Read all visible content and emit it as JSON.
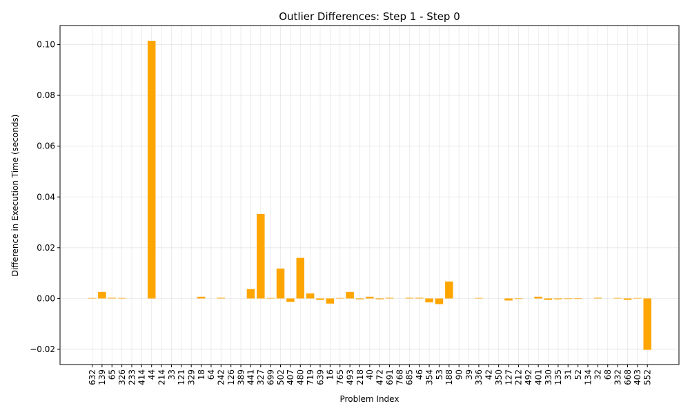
{
  "chart_data": {
    "type": "bar",
    "title": "Outlier Differences: Step 1 - Step 0",
    "xlabel": "Problem Index",
    "ylabel": "Difference in Execution Time (seconds)",
    "ylim": [
      -0.026,
      0.1075
    ],
    "yticks": [
      -0.02,
      0.0,
      0.02,
      0.04,
      0.06,
      0.08,
      0.1
    ],
    "ytick_labels": [
      "−0.02",
      "0.00",
      "0.02",
      "0.04",
      "0.06",
      "0.08",
      "0.10"
    ],
    "grid": true,
    "bar_color": "#ffa500",
    "categories": [
      "632",
      "139",
      "65",
      "326",
      "233",
      "414",
      "44",
      "214",
      "33",
      "121",
      "329",
      "18",
      "64",
      "242",
      "126",
      "389",
      "441",
      "327",
      "699",
      "502",
      "407",
      "480",
      "719",
      "639",
      "16",
      "765",
      "493",
      "218",
      "40",
      "472",
      "691",
      "768",
      "685",
      "46",
      "354",
      "53",
      "188",
      "90",
      "39",
      "336",
      "42",
      "350",
      "127",
      "212",
      "492",
      "401",
      "330",
      "135",
      "31",
      "52",
      "134",
      "32",
      "68",
      "332",
      "668",
      "403",
      "552"
    ],
    "values": [
      0.0002,
      0.0026,
      0.0003,
      0.0002,
      0.0,
      0.0,
      0.1015,
      0.0,
      0.0,
      0.0,
      0.0,
      0.0007,
      0.0,
      0.0003,
      0.0,
      0.0,
      0.0037,
      0.0333,
      0.0002,
      0.0118,
      -0.0013,
      0.016,
      0.002,
      -0.0005,
      -0.002,
      0.0002,
      0.0026,
      -0.0003,
      0.0007,
      -0.0003,
      0.0003,
      0.0,
      0.0003,
      0.0003,
      -0.0015,
      -0.0022,
      0.0067,
      0.0,
      0.0,
      0.0002,
      0.0,
      0.0,
      -0.0008,
      -0.0002,
      0.0,
      0.0007,
      -0.0005,
      -0.0003,
      -0.0002,
      -0.0002,
      0.0,
      0.0003,
      0.0,
      0.0002,
      -0.0005,
      0.0002,
      -0.0202
    ]
  }
}
